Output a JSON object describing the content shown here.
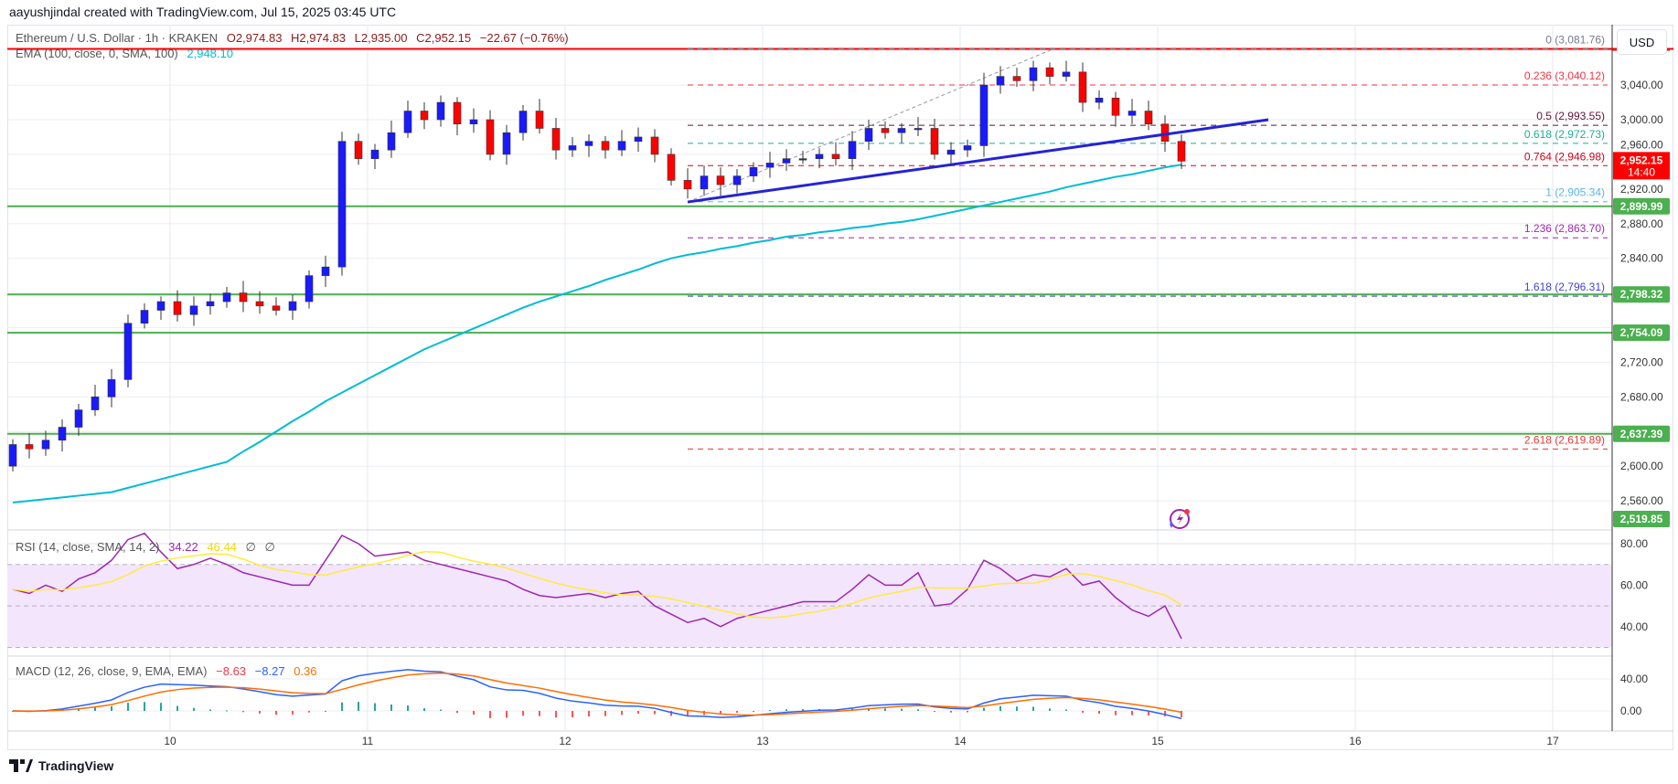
{
  "header": {
    "credit": "aayushjindal created with TradingView.com, Jul 15, 2025 03:45 UTC"
  },
  "legend": {
    "symbol": "Ethereum / U.S. Dollar · 1h · KRAKEN",
    "open": "O2,974.83",
    "high": "H2,974.83",
    "low": "L2,935.00",
    "close": "C2,952.15",
    "change": "−22.67 (−0.76%)",
    "ema_label": "EMA (100, close, 0, SMA, 100)",
    "ema_value": "2,948.10"
  },
  "rsi_legend": {
    "label": "RSI (14, close, SMA, 14, 2)",
    "rsi": "34.22",
    "sma": "46.44",
    "extra1": "∅",
    "extra2": "∅"
  },
  "macd_legend": {
    "label": "MACD (12, 26, close, 9, EMA, EMA)",
    "hist": "−8.63",
    "macd": "−8.27",
    "signal": "0.36"
  },
  "currency": "USD",
  "countdown": "14:40",
  "footer": {
    "brand": "TradingView"
  },
  "colors": {
    "up": "#1a1aff",
    "down": "#ff0000",
    "ema": "#00bcd4",
    "level": "#4caf50",
    "trendline": "#2323d6",
    "rsi": "#9c27b0",
    "rsi_sma": "#ffeb3b",
    "macd": "#2962ff",
    "signal": "#ff6d00",
    "rsi_band": "#f3e5fc"
  },
  "chart_data": {
    "type": "candlestick",
    "title": "Ethereum / U.S. Dollar · 1h · KRAKEN",
    "price_ticks": [
      3040,
      3000,
      2960,
      2920,
      2880,
      2840,
      2720,
      2680,
      2600,
      2560
    ],
    "price_tick_labels": [
      "3,040.00",
      "3,000.00",
      "2,960.00",
      "2,920.00",
      "2,880.00",
      "2,840.00",
      "2,720.00",
      "2,680.00",
      "2,600.00",
      "2,560.00"
    ],
    "ylim": [
      2515,
      3090
    ],
    "x_tick_labels": [
      "10",
      "11",
      "12",
      "13",
      "14",
      "15",
      "16",
      "17"
    ],
    "first_open": 2600,
    "close": [
      2625,
      2620,
      2630,
      2645,
      2665,
      2680,
      2700,
      2765,
      2780,
      2790,
      2775,
      2785,
      2790,
      2800,
      2790,
      2785,
      2780,
      2790,
      2820,
      2830,
      2975,
      2955,
      2965,
      2985,
      3010,
      3000,
      3020,
      2995,
      3000,
      2960,
      2985,
      3010,
      2990,
      2965,
      2970,
      2975,
      2965,
      2975,
      2980,
      2960,
      2930,
      2920,
      2935,
      2925,
      2935,
      2945,
      2950,
      2955,
      2955,
      2960,
      2955,
      2975,
      2990,
      2985,
      2990,
      2990,
      2960,
      2965,
      2970,
      3040,
      3050,
      3045,
      3060,
      3050,
      3055,
      3020,
      3025,
      3005,
      3010,
      2995,
      2975,
      2952.15
    ],
    "ema100": [
      2558,
      2560,
      2562,
      2564,
      2566,
      2568,
      2570,
      2575,
      2580,
      2585,
      2590,
      2595,
      2600,
      2605,
      2617,
      2628,
      2640,
      2652,
      2663,
      2675,
      2685,
      2695,
      2705,
      2715,
      2725,
      2735,
      2743,
      2751,
      2759,
      2767,
      2775,
      2783,
      2790,
      2796,
      2802,
      2808,
      2815,
      2821,
      2827,
      2834,
      2840,
      2844,
      2847,
      2851,
      2854,
      2858,
      2861,
      2865,
      2867,
      2870,
      2872,
      2875,
      2877,
      2880,
      2882,
      2885,
      2889,
      2893,
      2897,
      2901,
      2905,
      2909,
      2913,
      2917,
      2922,
      2926,
      2930,
      2934,
      2937,
      2941,
      2945,
      2948.1
    ],
    "rsi": [
      58,
      56,
      60,
      57,
      63,
      66,
      72,
      82,
      85,
      76,
      68,
      70,
      73,
      70,
      66,
      64,
      62,
      60,
      60,
      72,
      84,
      80,
      74,
      75,
      76,
      72,
      70,
      68,
      66,
      64,
      62,
      58,
      55,
      54,
      55,
      56,
      54,
      56,
      57,
      50,
      46,
      42,
      44,
      40,
      44,
      46,
      48,
      50,
      52,
      52,
      52,
      58,
      65,
      60,
      60,
      66,
      50,
      51,
      58,
      72,
      68,
      62,
      65,
      64,
      68,
      60,
      62,
      54,
      48,
      45,
      50,
      34.22
    ],
    "rsi_ticks": [
      "80.00",
      "60.00",
      "40.00"
    ],
    "macd_ticks": [
      "40.00",
      "0.00"
    ],
    "fib_levels": [
      {
        "ratio": "0",
        "price": 3081.76,
        "label": "0 (3,081.76)",
        "color": "#787b86"
      },
      {
        "ratio": "0.236",
        "price": 3040.12,
        "label": "0.236 (3,040.12)",
        "color": "#f23645"
      },
      {
        "ratio": "0.5",
        "price": 2993.55,
        "label": "0.5 (2,993.55)",
        "color": "#5d1530"
      },
      {
        "ratio": "0.618",
        "price": 2972.73,
        "label": "0.618 (2,972.73)",
        "color": "#22ab94"
      },
      {
        "ratio": "0.764",
        "price": 2946.98,
        "label": "0.764 (2,946.98)",
        "color": "#d0021b"
      },
      {
        "ratio": "1",
        "price": 2905.34,
        "label": "1 (2,905.34)",
        "color": "#5bb7e6"
      },
      {
        "ratio": "1.236",
        "price": 2863.7,
        "label": "1.236 (2,863.70)",
        "color": "#9c27b0"
      },
      {
        "ratio": "1.618",
        "price": 2796.31,
        "label": "1.618 (2,796.31)",
        "color": "#3f3fd6"
      },
      {
        "ratio": "2.618",
        "price": 2619.89,
        "label": "2.618 (2,619.89)",
        "color": "#e53935"
      }
    ],
    "horizontal_levels": [
      {
        "price": 2899.99,
        "label": "2,899.99"
      },
      {
        "price": 2798.32,
        "label": "2,798.32"
      },
      {
        "price": 2754.09,
        "label": "2,754.09"
      },
      {
        "price": 2637.39,
        "label": "2,637.39"
      },
      {
        "price": 2519.85,
        "label": "2,519.85"
      }
    ],
    "top_level": 3081.76,
    "last_price": {
      "price": 2952.15,
      "label": "2,952.15"
    },
    "trendline": {
      "from_price": 2905,
      "to_price": 3000
    },
    "grid": true
  }
}
